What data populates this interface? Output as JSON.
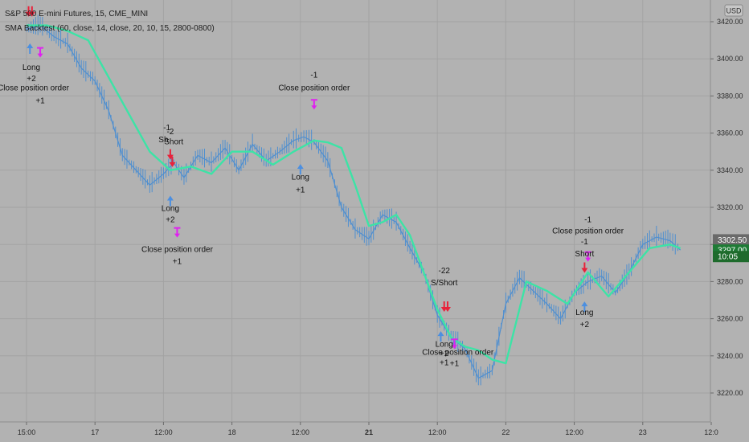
{
  "chart_data": {
    "type": "line",
    "title": "S&P 500 E-mini Futures, 15, CME_MINI",
    "subtitle": "SMA Backtest (60, close, 14, close, 20, 10, 15, 2800-0800)",
    "currency_button": "USD",
    "ylim": [
      3212,
      3436
    ],
    "y_ticks": [
      3220.0,
      3240.0,
      3260.0,
      3280.0,
      3300.0,
      3320.0,
      3340.0,
      3360.0,
      3380.0,
      3400.0,
      3420.0
    ],
    "y_tick_labels": [
      "3220.00",
      "3240.00",
      "3260.00",
      "3280.00",
      "3300.00",
      "3320.00",
      "3340.00",
      "3360.00",
      "3380.00",
      "3400.00",
      "3420.00"
    ],
    "x_range": [
      15,
      24.6
    ],
    "x_ticks": [
      {
        "t": 15.0,
        "label": "15:00",
        "bold": false
      },
      {
        "t": 16.0,
        "label": "17",
        "bold": false
      },
      {
        "t": 17.0,
        "label": "12:00",
        "bold": false
      },
      {
        "t": 18.0,
        "label": "18",
        "bold": false
      },
      {
        "t": 19.0,
        "label": "12:00",
        "bold": false
      },
      {
        "t": 20.0,
        "label": "21",
        "bold": true
      },
      {
        "t": 21.0,
        "label": "12:00",
        "bold": false
      },
      {
        "t": 22.0,
        "label": "22",
        "bold": false
      },
      {
        "t": 23.0,
        "label": "12:00",
        "bold": false
      },
      {
        "t": 24.0,
        "label": "23",
        "bold": false
      },
      {
        "t": 25.0,
        "label": "12:0",
        "bold": false
      }
    ],
    "price_tags": [
      {
        "value": 3302.5,
        "label": "3302.50",
        "color": "#6a6a6a"
      },
      {
        "value": 3297.0,
        "label": "3297.00",
        "color": "#1e7b35"
      },
      {
        "value": 3293.5,
        "label": "10:05",
        "color": "#1e6b2c"
      }
    ],
    "series": [
      {
        "name": "price",
        "color": "#4f8fd0",
        "x": [
          15.0,
          15.2,
          15.4,
          15.6,
          15.8,
          16.0,
          16.2,
          16.4,
          16.6,
          16.8,
          17.0,
          17.15,
          17.3,
          17.5,
          17.7,
          17.9,
          18.1,
          18.3,
          18.5,
          18.7,
          18.9,
          19.05,
          19.2,
          19.4,
          19.6,
          19.8,
          20.0,
          20.2,
          20.4,
          20.6,
          20.8,
          21.0,
          21.2,
          21.4,
          21.6,
          21.8,
          22.0,
          22.2,
          22.4,
          22.6,
          22.8,
          23.0,
          23.2,
          23.4,
          23.6,
          23.8,
          24.0,
          24.2,
          24.4,
          24.55
        ],
        "values": [
          3416,
          3418,
          3412,
          3408,
          3395,
          3388,
          3372,
          3348,
          3340,
          3332,
          3338,
          3344,
          3336,
          3348,
          3344,
          3352,
          3340,
          3354,
          3345,
          3350,
          3356,
          3358,
          3355,
          3345,
          3320,
          3308,
          3303,
          3316,
          3312,
          3298,
          3285,
          3262,
          3250,
          3244,
          3228,
          3232,
          3268,
          3282,
          3275,
          3268,
          3260,
          3274,
          3280,
          3283,
          3274,
          3285,
          3300,
          3304,
          3302,
          3297
        ]
      },
      {
        "name": "SMA",
        "color": "#3de3a6",
        "x": [
          15.0,
          15.3,
          15.6,
          15.9,
          16.2,
          16.5,
          16.8,
          17.1,
          17.4,
          17.7,
          18.0,
          18.3,
          18.6,
          18.9,
          19.2,
          19.4,
          19.6,
          19.8,
          20.0,
          20.2,
          20.4,
          20.6,
          20.8,
          21.0,
          21.2,
          21.4,
          21.6,
          21.8,
          22.0,
          22.3,
          22.6,
          22.9,
          23.2,
          23.5,
          23.8,
          24.1,
          24.4,
          24.55
        ],
        "values": [
          3418,
          3418,
          3415,
          3410,
          3390,
          3370,
          3350,
          3340,
          3342,
          3338,
          3350,
          3350,
          3343,
          3350,
          3356,
          3355,
          3352,
          3332,
          3310,
          3312,
          3316,
          3305,
          3285,
          3265,
          3250,
          3245,
          3243,
          3238,
          3236,
          3280,
          3275,
          3268,
          3285,
          3272,
          3285,
          3298,
          3300,
          3298
        ]
      }
    ],
    "annotations": [
      {
        "text": "ShShort",
        "t": 15.1,
        "v": 3432.5
      },
      {
        "text": "Long",
        "t": 15.07,
        "v": 3394
      },
      {
        "text": "+2",
        "t": 15.07,
        "v": 3388
      },
      {
        "text": "Close position order",
        "t": 15.1,
        "v": 3383
      },
      {
        "text": "+1",
        "t": 15.2,
        "v": 3376
      },
      {
        "text": "-1",
        "t": 17.05,
        "v": 3361.5
      },
      {
        "text": "-2",
        "t": 17.1,
        "v": 3359.5
      },
      {
        "text": "Sh",
        "t": 17.0,
        "v": 3355
      },
      {
        "text": "Short",
        "t": 17.15,
        "v": 3354
      },
      {
        "text": "Long",
        "t": 17.1,
        "v": 3318
      },
      {
        "text": "+2",
        "t": 17.1,
        "v": 3312
      },
      {
        "text": "Close position order",
        "t": 17.2,
        "v": 3296
      },
      {
        "text": "+1",
        "t": 17.2,
        "v": 3289.5
      },
      {
        "text": "-1",
        "t": 19.2,
        "v": 3390
      },
      {
        "text": "Close position order",
        "t": 19.2,
        "v": 3383
      },
      {
        "text": "Long",
        "t": 19.0,
        "v": 3335
      },
      {
        "text": "+1",
        "t": 19.0,
        "v": 3328
      },
      {
        "text": "-22",
        "t": 21.1,
        "v": 3284.5
      },
      {
        "text": "S/Short",
        "t": 21.1,
        "v": 3278
      },
      {
        "text": "Long",
        "t": 21.1,
        "v": 3245
      },
      {
        "text": "+2",
        "t": 21.1,
        "v": 3240
      },
      {
        "text": "Close position order",
        "t": 21.3,
        "v": 3240.5
      },
      {
        "text": "+1",
        "t": 21.1,
        "v": 3235
      },
      {
        "text": "+1",
        "t": 21.25,
        "v": 3234.5
      },
      {
        "text": "-1",
        "t": 23.2,
        "v": 3312
      },
      {
        "text": "Close position order",
        "t": 23.2,
        "v": 3306
      },
      {
        "text": "-1",
        "t": 23.15,
        "v": 3300
      },
      {
        "text": "Short",
        "t": 23.15,
        "v": 3293.5
      },
      {
        "text": "Long",
        "t": 23.15,
        "v": 3262
      },
      {
        "text": "+2",
        "t": 23.15,
        "v": 3255.5
      }
    ],
    "markers": [
      {
        "type": "arrow-down",
        "color": "#e8223a",
        "t": 15.03,
        "v": 3424
      },
      {
        "type": "arrow-down",
        "color": "#e8223a",
        "t": 15.08,
        "v": 3424
      },
      {
        "type": "arrow-up",
        "color": "#4c8fe0",
        "t": 15.05,
        "v": 3407
      },
      {
        "type": "bar-down",
        "color": "#e020f0",
        "t": 15.2,
        "v": 3402
      },
      {
        "type": "arrow-down",
        "color": "#e8223a",
        "t": 17.1,
        "v": 3347
      },
      {
        "type": "arrow-down",
        "color": "#e8223a",
        "t": 17.13,
        "v": 3343
      },
      {
        "type": "arrow-up",
        "color": "#4c8fe0",
        "t": 17.1,
        "v": 3325
      },
      {
        "type": "bar-down",
        "color": "#e020f0",
        "t": 17.2,
        "v": 3305
      },
      {
        "type": "bar-down",
        "color": "#e020f0",
        "t": 19.2,
        "v": 3374
      },
      {
        "type": "arrow-up",
        "color": "#4c8fe0",
        "t": 19.0,
        "v": 3342
      },
      {
        "type": "arrow-down",
        "color": "#e8223a",
        "t": 21.1,
        "v": 3265
      },
      {
        "type": "arrow-down",
        "color": "#e8223a",
        "t": 21.15,
        "v": 3265
      },
      {
        "type": "arrow-up",
        "color": "#4c8fe0",
        "t": 21.05,
        "v": 3252
      },
      {
        "type": "bar-down",
        "color": "#e020f0",
        "t": 21.25,
        "v": 3245
      },
      {
        "type": "bar-down",
        "color": "#e020f0",
        "t": 23.2,
        "v": 3292
      },
      {
        "type": "arrow-down",
        "color": "#e8223a",
        "t": 23.15,
        "v": 3286
      },
      {
        "type": "arrow-up",
        "color": "#4c8fe0",
        "t": 23.15,
        "v": 3268
      }
    ]
  }
}
